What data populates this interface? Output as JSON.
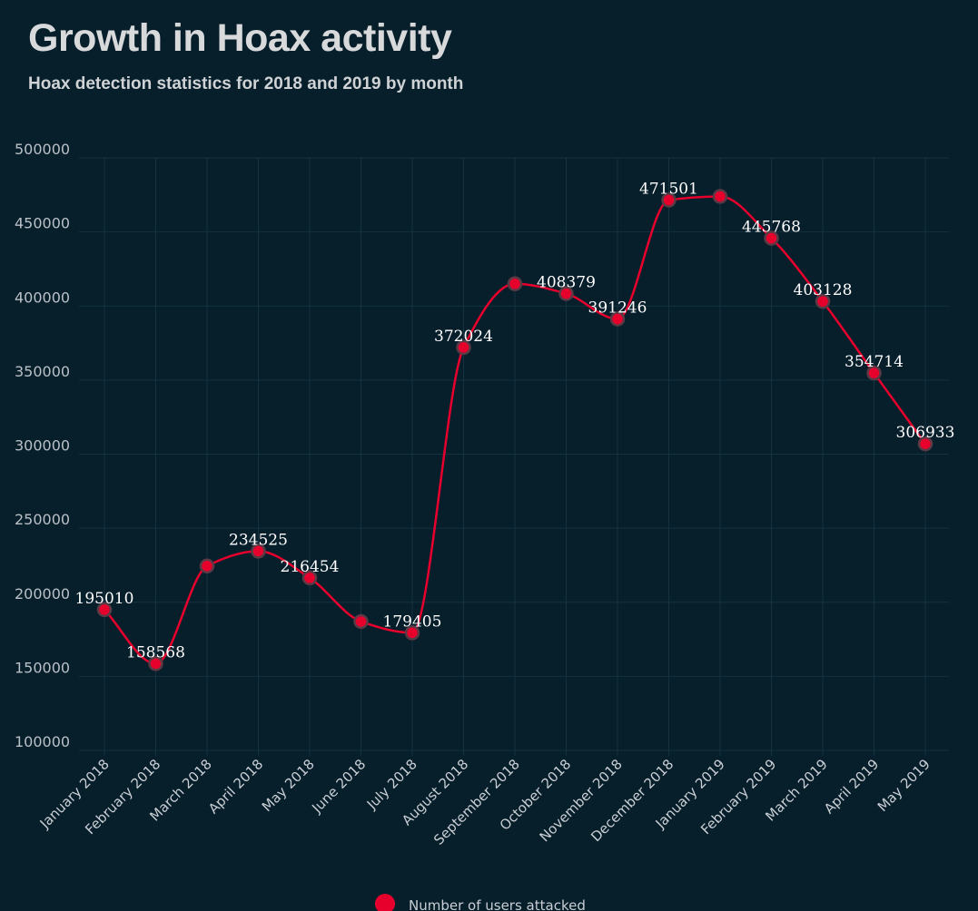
{
  "title": "Growth in Hoax activity",
  "subtitle": "Hoax detection statistics for 2018 and 2019 by month",
  "colors": {
    "background": "#071e2b",
    "series": "#e8002d",
    "grid": "#143240"
  },
  "chart_data": {
    "type": "line",
    "categories": [
      "January 2018",
      "February 2018",
      "March 2018",
      "April 2018",
      "May 2018",
      "June 2018",
      "July 2018",
      "August 2018",
      "September 2018",
      "October 2018",
      "November 2018",
      "December 2018",
      "January 2019",
      "February 2019",
      "March 2019",
      "April 2019",
      "May 2019"
    ],
    "series": [
      {
        "name": "Number of users attacked",
        "values": [
          195010,
          158568,
          224500,
          234525,
          216454,
          187000,
          179405,
          372024,
          415000,
          408379,
          391246,
          471501,
          474000,
          445768,
          403128,
          354714,
          306933
        ],
        "labels": [
          "195010",
          "158568",
          "",
          "234525",
          "216454",
          "",
          "179405",
          "372024",
          "",
          "408379",
          "391246",
          "471501",
          "",
          "445768",
          "403128",
          "354714",
          "306933"
        ]
      }
    ],
    "yticks": [
      "100000",
      "150000",
      "200000",
      "250000",
      "300000",
      "350000",
      "400000",
      "450000",
      "500000"
    ],
    "ylim": [
      100000,
      500000
    ],
    "smooth": true,
    "grid": true,
    "legend": "bottom"
  }
}
